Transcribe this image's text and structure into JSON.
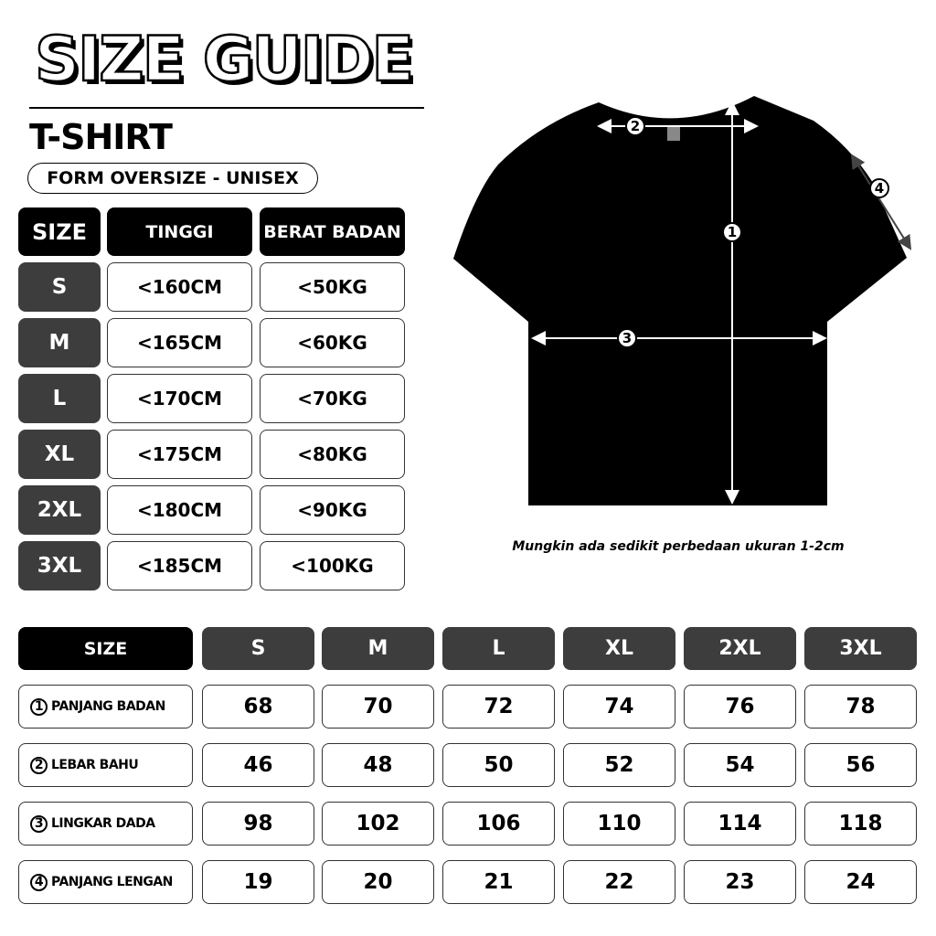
{
  "header": {
    "title": "SIZE GUIDE",
    "product": "T-SHIRT",
    "form": "FORM OVERSIZE - UNISEX"
  },
  "fit_table": {
    "headers": [
      "SIZE",
      "TINGGI",
      "BERAT BADAN"
    ],
    "rows": [
      [
        "S",
        "<160CM",
        "<50KG"
      ],
      [
        "M",
        "<165CM",
        "<60KG"
      ],
      [
        "L",
        "<170CM",
        "<70KG"
      ],
      [
        "XL",
        "<175CM",
        "<80KG"
      ],
      [
        "2XL",
        "<180CM",
        "<90KG"
      ],
      [
        "3XL",
        "<185CM",
        "<100KG"
      ]
    ]
  },
  "diagram": {
    "markers": [
      "1",
      "2",
      "3",
      "4"
    ],
    "note": "Mungkin ada sedikit perbedaan ukuran 1-2cm",
    "shirt_color": "#000000"
  },
  "measure_table": {
    "headers": [
      "SIZE",
      "S",
      "M",
      "L",
      "XL",
      "2XL",
      "3XL"
    ],
    "rows": [
      {
        "num": "1",
        "label": "PANJANG BADAN",
        "values": [
          "68",
          "70",
          "72",
          "74",
          "76",
          "78"
        ]
      },
      {
        "num": "2",
        "label": "LEBAR BAHU",
        "values": [
          "46",
          "48",
          "50",
          "52",
          "54",
          "56"
        ]
      },
      {
        "num": "3",
        "label": "LINGKAR DADA",
        "values": [
          "98",
          "102",
          "106",
          "110",
          "114",
          "118"
        ]
      },
      {
        "num": "4",
        "label": "PANJANG LENGAN",
        "values": [
          "19",
          "20",
          "21",
          "22",
          "23",
          "24"
        ]
      }
    ]
  }
}
